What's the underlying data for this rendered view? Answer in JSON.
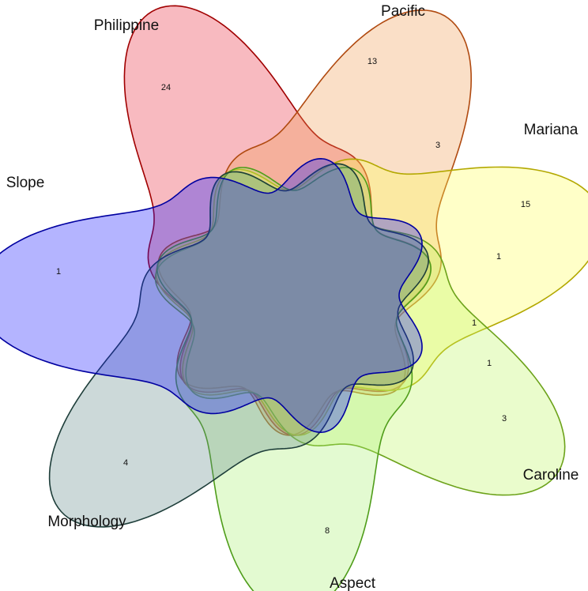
{
  "sets": [
    {
      "name": "Philippine",
      "fill": "#e8283a",
      "stroke": "#a00000",
      "unique": "24"
    },
    {
      "name": "Pacific",
      "fill": "#ee9a50",
      "stroke": "#b04a10",
      "unique": "13"
    },
    {
      "name": "Mariana",
      "fill": "#ffff55",
      "stroke": "#b3a800",
      "unique": "15"
    },
    {
      "name": "Caroline",
      "fill": "#bff560",
      "stroke": "#6ca21a",
      "unique": "3"
    },
    {
      "name": "Aspect",
      "fill": "#a8f070",
      "stroke": "#4f9d1a",
      "unique": "8"
    },
    {
      "name": "Morphology",
      "fill": "#5f8a8a",
      "stroke": "#1e3e3a",
      "unique": "4"
    },
    {
      "name": "Slope",
      "fill": "#1515ff",
      "stroke": "#0000a0",
      "unique": "1"
    }
  ],
  "other_counts": [
    "3",
    "1",
    "1",
    "1"
  ]
}
